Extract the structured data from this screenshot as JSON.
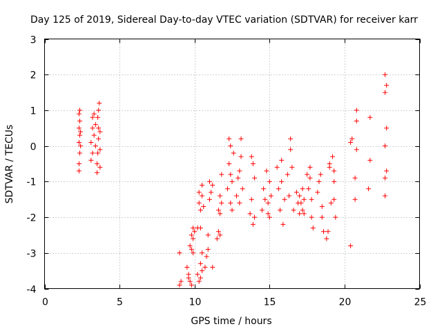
{
  "chart_data": {
    "type": "scatter",
    "title": "Day 125 of 2019, Sidereal Day-to-day VTEC variation (SDTVAR) for receiver karr",
    "xlabel": "GPS time / hours",
    "ylabel": "SDTVAR / TECUs",
    "xlim": [
      0,
      25
    ],
    "ylim": [
      -4,
      3
    ],
    "xticks": [
      0,
      5,
      10,
      15,
      20,
      25
    ],
    "yticks": [
      -4,
      -3,
      -2,
      -1,
      0,
      1,
      2,
      3
    ],
    "grid": true,
    "marker": "+",
    "color": "#ff0000",
    "series": [
      {
        "name": "SDTVAR",
        "points": [
          [
            2.3,
            -0.7
          ],
          [
            2.3,
            -0.5
          ],
          [
            2.35,
            -0.2
          ],
          [
            2.3,
            0.1
          ],
          [
            2.35,
            0.3
          ],
          [
            2.3,
            0.5
          ],
          [
            2.35,
            0.7
          ],
          [
            2.3,
            0.9
          ],
          [
            2.35,
            1.0
          ],
          [
            2.4,
            0.0
          ],
          [
            2.4,
            0.4
          ],
          [
            3.1,
            -0.4
          ],
          [
            3.1,
            0.1
          ],
          [
            3.2,
            0.5
          ],
          [
            3.2,
            0.8
          ],
          [
            3.3,
            0.9
          ],
          [
            3.3,
            0.3
          ],
          [
            3.2,
            -0.2
          ],
          [
            3.4,
            0.0
          ],
          [
            3.4,
            0.6
          ],
          [
            3.5,
            -0.75
          ],
          [
            3.5,
            -0.5
          ],
          [
            3.55,
            -0.2
          ],
          [
            3.6,
            0.2
          ],
          [
            3.6,
            0.5
          ],
          [
            3.55,
            0.8
          ],
          [
            3.6,
            1.0
          ],
          [
            3.65,
            1.2
          ],
          [
            3.7,
            -0.6
          ],
          [
            3.7,
            -0.1
          ],
          [
            3.7,
            0.4
          ],
          [
            9.0,
            -3.0
          ],
          [
            9.0,
            -3.9
          ],
          [
            9.1,
            -3.8
          ],
          [
            9.5,
            -3.4
          ],
          [
            9.6,
            -3.6
          ],
          [
            9.6,
            -3.7
          ],
          [
            9.7,
            -3.8
          ],
          [
            9.8,
            -3.9
          ],
          [
            9.7,
            -2.8
          ],
          [
            9.8,
            -2.9
          ],
          [
            9.8,
            -2.5
          ],
          [
            9.9,
            -2.6
          ],
          [
            9.9,
            -2.3
          ],
          [
            10.0,
            -2.4
          ],
          [
            9.9,
            -3.0
          ],
          [
            10.2,
            -3.6
          ],
          [
            10.3,
            -3.8
          ],
          [
            10.4,
            -3.7
          ],
          [
            10.4,
            -3.3
          ],
          [
            10.5,
            -3.5
          ],
          [
            10.5,
            -3.0
          ],
          [
            10.2,
            -2.3
          ],
          [
            10.3,
            -1.6
          ],
          [
            10.3,
            -1.3
          ],
          [
            10.4,
            -1.8
          ],
          [
            10.4,
            -2.3
          ],
          [
            10.5,
            -1.4
          ],
          [
            10.5,
            -1.1
          ],
          [
            10.6,
            -1.7
          ],
          [
            10.7,
            -3.4
          ],
          [
            10.8,
            -3.1
          ],
          [
            10.9,
            -2.9
          ],
          [
            10.9,
            -2.5
          ],
          [
            11.0,
            -1.5
          ],
          [
            11.0,
            -1.0
          ],
          [
            11.1,
            -1.3
          ],
          [
            11.2,
            -1.1
          ],
          [
            11.2,
            -3.4
          ],
          [
            11.5,
            -2.6
          ],
          [
            11.6,
            -2.4
          ],
          [
            11.7,
            -2.5
          ],
          [
            11.6,
            -1.8
          ],
          [
            11.7,
            -1.4
          ],
          [
            11.8,
            -1.6
          ],
          [
            11.8,
            -0.8
          ],
          [
            11.7,
            -1.9
          ],
          [
            12.2,
            -1.2
          ],
          [
            12.3,
            -0.5
          ],
          [
            12.3,
            0.2
          ],
          [
            12.4,
            -0.8
          ],
          [
            12.4,
            -1.6
          ],
          [
            12.5,
            -1.8
          ],
          [
            12.5,
            -1.0
          ],
          [
            12.6,
            -0.2
          ],
          [
            12.4,
            0.0
          ],
          [
            12.8,
            -1.4
          ],
          [
            12.9,
            -0.9
          ],
          [
            13.0,
            -0.7
          ],
          [
            13.1,
            -0.3
          ],
          [
            13.1,
            0.2
          ],
          [
            13.0,
            -1.6
          ],
          [
            13.2,
            -1.2
          ],
          [
            13.7,
            -1.9
          ],
          [
            13.8,
            -1.5
          ],
          [
            13.8,
            -0.3
          ],
          [
            13.9,
            -0.5
          ],
          [
            14.0,
            -2.0
          ],
          [
            14.0,
            -0.9
          ],
          [
            13.9,
            -2.2
          ],
          [
            14.5,
            -1.8
          ],
          [
            14.6,
            -1.2
          ],
          [
            14.7,
            -1.5
          ],
          [
            14.8,
            -0.7
          ],
          [
            14.9,
            -1.9
          ],
          [
            15.0,
            -1.0
          ],
          [
            15.1,
            -1.4
          ],
          [
            15.0,
            -2.0
          ],
          [
            14.9,
            -1.6
          ],
          [
            15.5,
            -0.6
          ],
          [
            15.6,
            -1.2
          ],
          [
            15.7,
            -1.8
          ],
          [
            15.8,
            -0.4
          ],
          [
            15.8,
            -1.0
          ],
          [
            15.9,
            -2.2
          ],
          [
            16.0,
            -1.5
          ],
          [
            16.2,
            -0.8
          ],
          [
            16.3,
            -1.4
          ],
          [
            16.4,
            -0.1
          ],
          [
            16.4,
            0.2
          ],
          [
            16.5,
            -0.6
          ],
          [
            16.6,
            -1.8
          ],
          [
            16.8,
            -1.3
          ],
          [
            16.9,
            -1.6
          ],
          [
            17.0,
            -1.9
          ],
          [
            17.0,
            -1.4
          ],
          [
            17.1,
            -1.6
          ],
          [
            17.2,
            -1.2
          ],
          [
            17.2,
            -1.8
          ],
          [
            17.3,
            -1.5
          ],
          [
            17.3,
            -1.9
          ],
          [
            17.5,
            -0.8
          ],
          [
            17.6,
            -1.2
          ],
          [
            17.7,
            -0.9
          ],
          [
            17.8,
            -1.5
          ],
          [
            17.8,
            -2.0
          ],
          [
            17.9,
            -2.3
          ],
          [
            17.7,
            -0.6
          ],
          [
            18.2,
            -1.3
          ],
          [
            18.3,
            -1.0
          ],
          [
            18.4,
            -0.8
          ],
          [
            18.5,
            -1.7
          ],
          [
            18.5,
            -2.0
          ],
          [
            18.6,
            -2.4
          ],
          [
            18.8,
            -2.6
          ],
          [
            18.9,
            -2.4
          ],
          [
            19.0,
            -0.5
          ],
          [
            19.0,
            -0.6
          ],
          [
            19.1,
            -1.6
          ],
          [
            19.2,
            -0.3
          ],
          [
            19.3,
            -0.7
          ],
          [
            19.3,
            -1.0
          ],
          [
            19.3,
            -1.5
          ],
          [
            19.4,
            -2.0
          ],
          [
            20.4,
            -2.8
          ],
          [
            20.4,
            0.1
          ],
          [
            20.5,
            0.2
          ],
          [
            20.7,
            -1.5
          ],
          [
            20.7,
            -0.9
          ],
          [
            20.8,
            -0.1
          ],
          [
            20.8,
            0.7
          ],
          [
            20.8,
            1.0
          ],
          [
            21.6,
            -1.2
          ],
          [
            21.7,
            -0.4
          ],
          [
            21.7,
            0.8
          ],
          [
            22.7,
            -1.4
          ],
          [
            22.7,
            -0.9
          ],
          [
            22.8,
            -0.7
          ],
          [
            22.7,
            0.0
          ],
          [
            22.8,
            0.5
          ],
          [
            22.7,
            1.5
          ],
          [
            22.8,
            1.7
          ],
          [
            22.7,
            2.0
          ]
        ]
      }
    ]
  }
}
